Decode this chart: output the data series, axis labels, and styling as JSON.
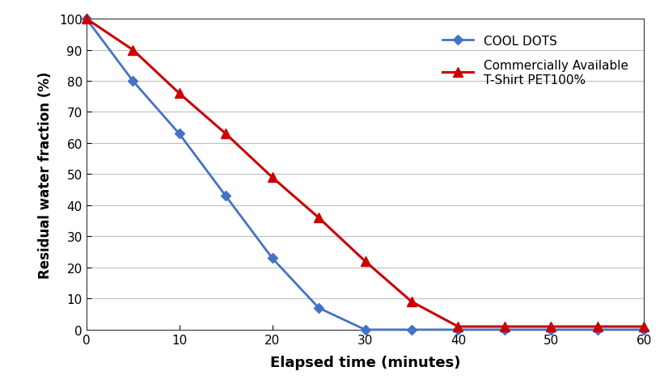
{
  "xlabel": "Elapsed time (minutes)",
  "ylabel": "Residual water fraction (%)",
  "cool_dots_x": [
    0,
    5,
    10,
    15,
    20,
    25,
    30,
    35,
    40,
    45,
    50,
    55,
    60
  ],
  "cool_dots_y": [
    100,
    80,
    63,
    43,
    23,
    7,
    0,
    0,
    0,
    0,
    0,
    0,
    0
  ],
  "pet_x": [
    0,
    5,
    10,
    15,
    20,
    25,
    30,
    35,
    40,
    45,
    50,
    55,
    60
  ],
  "pet_y": [
    100,
    90,
    76,
    63,
    49,
    36,
    22,
    9,
    1,
    1,
    1,
    1,
    1
  ],
  "cool_dots_color": "#4472C4",
  "pet_color": "#CC0000",
  "cool_dots_label": "COOL DOTS",
  "pet_label": "Commercially Available\nT-Shirt PET100%",
  "xlim": [
    0,
    60
  ],
  "ylim": [
    0,
    100
  ],
  "xticks": [
    0,
    10,
    20,
    30,
    40,
    50,
    60
  ],
  "yticks": [
    0,
    10,
    20,
    30,
    40,
    50,
    60,
    70,
    80,
    90,
    100
  ],
  "background_color": "#FFFFFF",
  "grid_color": "#C0C0C0"
}
